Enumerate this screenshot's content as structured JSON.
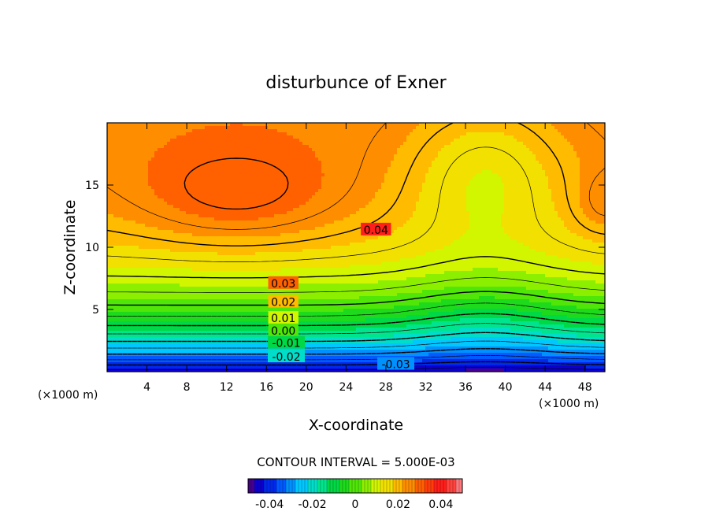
{
  "chart_data": {
    "type": "contour",
    "title": "disturbunce of Exner",
    "xlabel": "X-coordinate",
    "ylabel": "Z-coordinate",
    "x_unit": "(×1000 m)",
    "y_unit": "(×1000 m)",
    "xlim": [
      0,
      50
    ],
    "ylim": [
      0,
      20
    ],
    "x_ticks": [
      4,
      8,
      12,
      16,
      20,
      24,
      28,
      32,
      36,
      40,
      44,
      48
    ],
    "y_ticks": [
      5,
      10,
      15
    ],
    "contour_interval_label": "CONTOUR INTERVAL = 5.000E-03",
    "contour_interval": 0.005,
    "contour_labels": [
      {
        "text": "0.04",
        "value": 0.04,
        "x": 27,
        "z": 11.4
      },
      {
        "text": "0.03",
        "value": 0.03,
        "x": 17.7,
        "z": 7.1
      },
      {
        "text": "0.02",
        "value": 0.02,
        "x": 17.7,
        "z": 5.6
      },
      {
        "text": "0.01",
        "value": 0.01,
        "x": 17.7,
        "z": 4.3
      },
      {
        "text": "0.00",
        "value": 0.0,
        "x": 17.7,
        "z": 3.3
      },
      {
        "text": "-0.01",
        "value": -0.01,
        "x": 18.0,
        "z": 2.3
      },
      {
        "text": "-0.02",
        "value": -0.02,
        "x": 18.0,
        "z": 1.2
      },
      {
        "text": "-0.03",
        "value": -0.03,
        "x": 29.0,
        "z": 0.6
      }
    ],
    "field_summary": {
      "min": -0.045,
      "max": 0.047,
      "max_location": [
        14.5,
        14.2
      ],
      "saddle_location": [
        38,
        12.3
      ],
      "min_location": [
        38,
        0.2
      ]
    },
    "colorbar": {
      "range": [
        -0.05,
        0.05
      ],
      "tick_labels": [
        "-0.04",
        "-0.02",
        "0",
        "0.02",
        "0.04"
      ],
      "tick_values": [
        -0.04,
        -0.02,
        0,
        0.02,
        0.04
      ]
    }
  }
}
